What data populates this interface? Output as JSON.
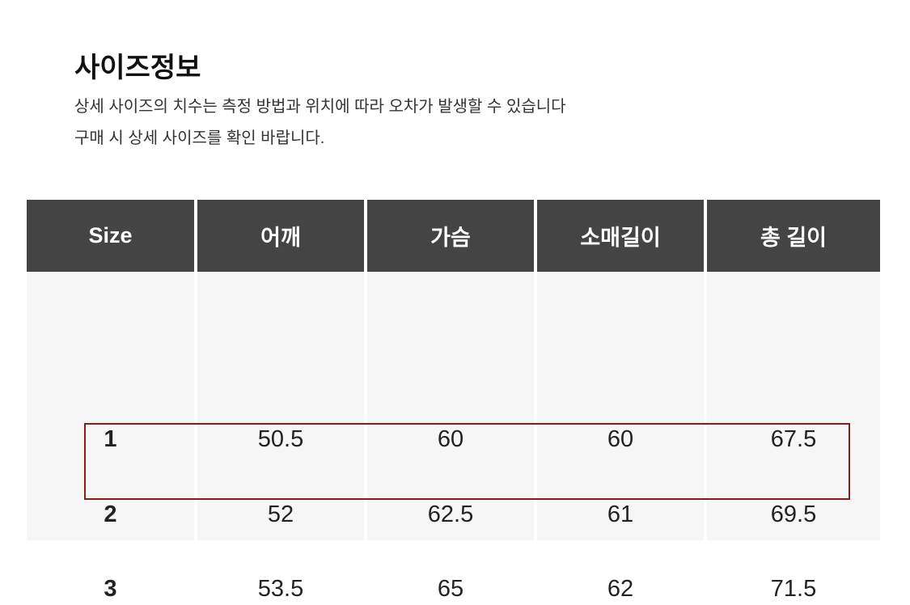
{
  "title": "사이즈정보",
  "description": [
    "상세 사이즈의 치수는 측정 방법과 위치에 따라 오차가 발생할 수 있습니다",
    "구매 시 상세 사이즈를 확인 바랍니다."
  ],
  "table": {
    "headers": [
      "Size",
      "어깨",
      "가슴",
      "소매길이",
      "총 길이"
    ],
    "rows": [
      [
        "1",
        "50.5",
        "60",
        "60",
        "67.5"
      ],
      [
        "2",
        "52",
        "62.5",
        "61",
        "69.5"
      ],
      [
        "3",
        "53.5",
        "65",
        "62",
        "71.5"
      ]
    ],
    "highlighted_row": "3",
    "header_color": "#444444",
    "highlight_color": "#8b1a1a"
  }
}
